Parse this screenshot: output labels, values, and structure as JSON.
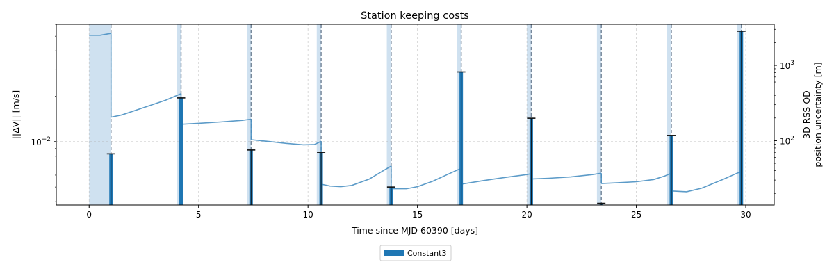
{
  "chart_data": {
    "type": "bar",
    "title": "Station keeping costs",
    "xlabel": "Time since MJD 60390 [days]",
    "ylabel_left": "||ΔV|| [m/s]",
    "ylabel_right_line1": "3D RSS OD",
    "ylabel_right_line2": "position uncertainty [m]",
    "xlim": [
      -1.5,
      31.3
    ],
    "ylim_left": [
      0.0038,
      0.06
    ],
    "y_scale_left": "log",
    "ylim_right": [
      14,
      3500
    ],
    "y_scale_right": "log",
    "x_ticks": [
      0,
      5,
      10,
      15,
      20,
      25,
      30
    ],
    "x_tick_labels": [
      "0",
      "5",
      "10",
      "15",
      "20",
      "25",
      "30"
    ],
    "y_ticks_left": [
      0.01
    ],
    "y_tick_labels_left": [
      "10^{-2}"
    ],
    "y_tick_base": "10",
    "y_tick_exp": "−2",
    "y_ticks_right": [
      100,
      1000
    ],
    "y_tick_labels_right": [
      {
        "base": "10",
        "exp": "2"
      },
      {
        "base": "10",
        "exp": "3"
      }
    ],
    "grid": true,
    "legend_location": "bottom-center",
    "legend": [
      "Constant3"
    ],
    "bar_color": "#1f77b4",
    "line_color": "#4a90c2",
    "span_color": "#a8c8e4",
    "series": [
      {
        "name": "Constant3",
        "type": "bar",
        "x": [
          1.0,
          4.2,
          7.4,
          10.6,
          13.8,
          17.0,
          20.2,
          23.4,
          26.6,
          29.8
        ],
        "values": [
          0.0083,
          0.0195,
          0.0088,
          0.0085,
          0.005,
          0.029,
          0.0143,
          0.0039,
          0.011,
          0.054
        ]
      }
    ],
    "burn_windows": [
      {
        "start": 0.0,
        "end": 1.0
      },
      {
        "start": 4.0,
        "end": 4.2
      },
      {
        "start": 7.2,
        "end": 7.4
      },
      {
        "start": 10.4,
        "end": 10.6
      },
      {
        "start": 13.6,
        "end": 13.8
      },
      {
        "start": 16.8,
        "end": 17.0
      },
      {
        "start": 20.0,
        "end": 20.2
      },
      {
        "start": 23.2,
        "end": 23.4
      },
      {
        "start": 26.4,
        "end": 26.6
      },
      {
        "start": 29.6,
        "end": 29.8
      }
    ],
    "uncertainty_segments": [
      {
        "x": [
          0.0,
          0.5,
          1.0
        ],
        "y": [
          2500,
          2500,
          2650
        ]
      },
      {
        "x": [
          1.0,
          1.5,
          2.5,
          3.5,
          4.2
        ],
        "y": [
          205,
          220,
          275,
          345,
          420
        ]
      },
      {
        "x": [
          4.2,
          5.0,
          6.0,
          7.0,
          7.4
        ],
        "y": [
          165,
          170,
          177,
          186,
          193
        ]
      },
      {
        "x": [
          7.4,
          8.0,
          9.0,
          9.8,
          10.3,
          10.6
        ],
        "y": [
          103,
          99,
          92,
          88,
          89,
          98
        ]
      },
      {
        "x": [
          10.6,
          11.0,
          11.5,
          12.0,
          12.8,
          13.5,
          13.8
        ],
        "y": [
          26.5,
          25,
          24.5,
          25.5,
          31,
          41,
          46
        ]
      },
      {
        "x": [
          13.8,
          14.5,
          15.0,
          15.7,
          16.5,
          17.0
        ],
        "y": [
          23,
          23,
          24.5,
          29,
          37,
          43
        ]
      },
      {
        "x": [
          17.0,
          18.0,
          19.0,
          20.0,
          20.2
        ],
        "y": [
          26.5,
          29.5,
          32.5,
          35.5,
          36.5
        ]
      },
      {
        "x": [
          20.2,
          21.0,
          22.0,
          23.0,
          23.4
        ],
        "y": [
          31,
          31.7,
          33,
          35.5,
          37
        ]
      },
      {
        "x": [
          23.4,
          24.0,
          25.0,
          25.8,
          26.3,
          26.6
        ],
        "y": [
          27,
          27.5,
          28.5,
          30.5,
          34,
          37
        ]
      },
      {
        "x": [
          26.6,
          27.3,
          28.0,
          29.0,
          29.6,
          29.8
        ],
        "y": [
          21.5,
          21,
          23.5,
          31,
          37,
          39
        ]
      }
    ]
  }
}
